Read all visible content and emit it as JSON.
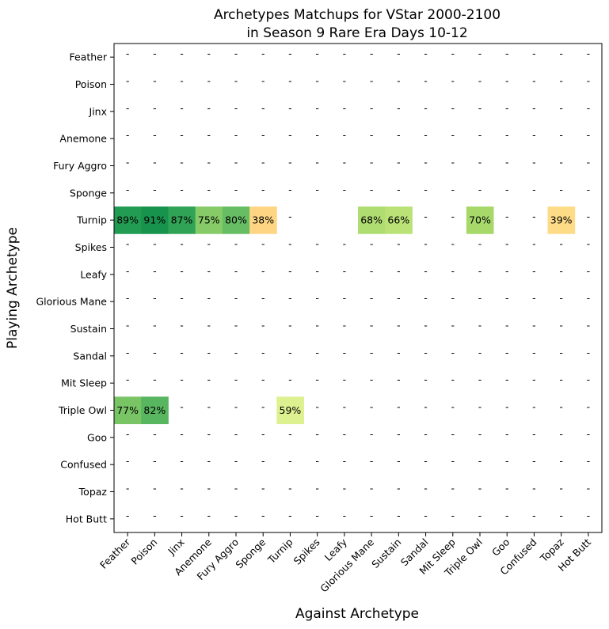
{
  "chart_data": {
    "type": "heatmap",
    "title": "Archetypes Matchups for VStar 2000-2100",
    "subtitle": "in Season 9 Rare Era Days 10-12",
    "xlabel": "Against Archetype",
    "ylabel": "Playing Archetype",
    "x_categories": [
      "Feather",
      "Poison",
      "Jinx",
      "Anemone",
      "Fury Aggro",
      "Sponge",
      "Turnip",
      "Spikes",
      "Leafy",
      "Glorious Mane",
      "Sustain",
      "Sandal",
      "Mit Sleep",
      "Triple Owl",
      "Goo",
      "Confused",
      "Topaz",
      "Hot Butt"
    ],
    "y_categories": [
      "Feather",
      "Poison",
      "Jinx",
      "Anemone",
      "Fury Aggro",
      "Sponge",
      "Turnip",
      "Spikes",
      "Leafy",
      "Glorious Mane",
      "Sustain",
      "Sandal",
      "Mit Sleep",
      "Triple Owl",
      "Goo",
      "Confused",
      "Topaz",
      "Hot Butt"
    ],
    "missing_label": "-",
    "value_suffix": "%",
    "colormap": "RdYlGn",
    "values": [
      [
        null,
        null,
        null,
        null,
        null,
        null,
        null,
        null,
        null,
        null,
        null,
        null,
        null,
        null,
        null,
        null,
        null,
        null
      ],
      [
        null,
        null,
        null,
        null,
        null,
        null,
        null,
        null,
        null,
        null,
        null,
        null,
        null,
        null,
        null,
        null,
        null,
        null
      ],
      [
        null,
        null,
        null,
        null,
        null,
        null,
        null,
        null,
        null,
        null,
        null,
        null,
        null,
        null,
        null,
        null,
        null,
        null
      ],
      [
        null,
        null,
        null,
        null,
        null,
        null,
        null,
        null,
        null,
        null,
        null,
        null,
        null,
        null,
        null,
        null,
        null,
        null
      ],
      [
        null,
        null,
        null,
        null,
        null,
        null,
        null,
        null,
        null,
        null,
        null,
        null,
        null,
        null,
        null,
        null,
        null,
        null
      ],
      [
        null,
        null,
        null,
        null,
        null,
        null,
        null,
        null,
        null,
        null,
        null,
        null,
        null,
        null,
        null,
        null,
        null,
        null
      ],
      [
        89,
        91,
        87,
        75,
        80,
        38,
        null,
        "",
        "",
        68,
        66,
        null,
        null,
        70,
        null,
        null,
        39,
        null
      ],
      [
        null,
        null,
        null,
        null,
        null,
        null,
        null,
        null,
        null,
        null,
        null,
        null,
        null,
        null,
        null,
        null,
        null,
        null
      ],
      [
        null,
        null,
        null,
        null,
        null,
        null,
        null,
        null,
        null,
        null,
        null,
        null,
        null,
        null,
        null,
        null,
        null,
        null
      ],
      [
        null,
        null,
        null,
        null,
        null,
        null,
        null,
        null,
        null,
        null,
        null,
        null,
        null,
        null,
        null,
        null,
        null,
        null
      ],
      [
        null,
        null,
        null,
        null,
        null,
        null,
        null,
        null,
        null,
        null,
        null,
        null,
        null,
        null,
        null,
        null,
        null,
        null
      ],
      [
        null,
        null,
        null,
        null,
        null,
        null,
        null,
        null,
        null,
        null,
        null,
        null,
        null,
        null,
        null,
        null,
        null,
        null
      ],
      [
        null,
        null,
        null,
        null,
        null,
        null,
        null,
        null,
        null,
        null,
        null,
        null,
        null,
        null,
        null,
        null,
        null,
        null
      ],
      [
        77,
        82,
        null,
        null,
        null,
        null,
        59,
        null,
        null,
        null,
        null,
        null,
        null,
        null,
        null,
        null,
        null,
        null
      ],
      [
        null,
        null,
        null,
        null,
        null,
        null,
        null,
        null,
        null,
        null,
        null,
        null,
        null,
        null,
        null,
        null,
        null,
        null
      ],
      [
        null,
        null,
        null,
        null,
        null,
        null,
        null,
        null,
        null,
        null,
        null,
        null,
        null,
        null,
        null,
        null,
        null,
        null
      ],
      [
        null,
        null,
        null,
        null,
        null,
        null,
        null,
        null,
        null,
        null,
        null,
        null,
        null,
        null,
        null,
        null,
        null,
        null
      ],
      [
        null,
        null,
        null,
        null,
        null,
        null,
        null,
        null,
        null,
        null,
        null,
        null,
        null,
        null,
        null,
        null,
        null,
        null
      ]
    ]
  }
}
